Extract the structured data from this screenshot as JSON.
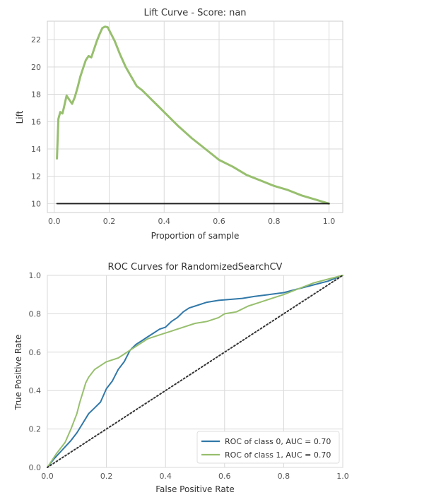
{
  "chart_data": [
    {
      "type": "line",
      "title": "Lift Curve - Score: nan",
      "xlabel": "Proportion of sample",
      "ylabel": "Lift",
      "xlim": [
        -0.025,
        1.05
      ],
      "ylim": [
        9.35,
        23.35
      ],
      "xticks": [
        "0.0",
        "0.2",
        "0.4",
        "0.6",
        "0.8",
        "1.0"
      ],
      "xtick_values": [
        0,
        0.2,
        0.4,
        0.6,
        0.8,
        1.0
      ],
      "yticks": [
        "10",
        "12",
        "14",
        "16",
        "18",
        "20",
        "22"
      ],
      "ytick_values": [
        10,
        12,
        14,
        16,
        18,
        20,
        22
      ],
      "grid": true,
      "series": [
        {
          "color": "#97bf6e",
          "x": [
            0.01,
            0.015,
            0.022,
            0.03,
            0.035,
            0.045,
            0.055,
            0.065,
            0.075,
            0.085,
            0.095,
            0.105,
            0.115,
            0.125,
            0.135,
            0.145,
            0.155,
            0.165,
            0.175,
            0.185,
            0.195,
            0.205,
            0.22,
            0.24,
            0.26,
            0.28,
            0.3,
            0.32,
            0.35,
            0.38,
            0.41,
            0.45,
            0.5,
            0.55,
            0.6,
            0.65,
            0.7,
            0.75,
            0.8,
            0.85,
            0.9,
            0.95,
            1.0
          ],
          "y": [
            13.3,
            16.2,
            16.7,
            16.6,
            17.0,
            17.9,
            17.6,
            17.3,
            17.8,
            18.5,
            19.3,
            19.9,
            20.5,
            20.8,
            20.7,
            21.3,
            21.9,
            22.4,
            22.85,
            22.95,
            22.9,
            22.5,
            21.9,
            20.9,
            20.0,
            19.3,
            18.6,
            18.3,
            17.7,
            17.1,
            16.5,
            15.7,
            14.8,
            14.0,
            13.2,
            12.7,
            12.1,
            11.7,
            11.3,
            11.0,
            10.6,
            10.3,
            10.0
          ]
        },
        {
          "color": "#222222",
          "x": [
            0.01,
            1.0
          ],
          "y": [
            10.0,
            10.0
          ]
        }
      ]
    },
    {
      "type": "line",
      "title": "ROC Curves for RandomizedSearchCV",
      "xlabel": "False Positive Rate",
      "ylabel": "True Positive Rate",
      "xlim": [
        0.0,
        1.0
      ],
      "ylim": [
        0.0,
        1.0
      ],
      "xticks": [
        "0.0",
        "0.2",
        "0.4",
        "0.6",
        "0.8",
        "1.0"
      ],
      "xtick_values": [
        0,
        0.2,
        0.4,
        0.6,
        0.8,
        1.0
      ],
      "yticks": [
        "0.0",
        "0.2",
        "0.4",
        "0.6",
        "0.8",
        "1.0"
      ],
      "ytick_values": [
        0,
        0.2,
        0.4,
        0.6,
        0.8,
        1.0
      ],
      "grid": true,
      "legend_position": "lower-right",
      "series": [
        {
          "name": "ROC of class 0, AUC = 0.70",
          "color": "#3178a8",
          "x": [
            0.0,
            0.02,
            0.05,
            0.08,
            0.1,
            0.12,
            0.14,
            0.16,
            0.18,
            0.2,
            0.22,
            0.24,
            0.26,
            0.28,
            0.3,
            0.32,
            0.34,
            0.36,
            0.38,
            0.4,
            0.42,
            0.44,
            0.46,
            0.48,
            0.5,
            0.54,
            0.58,
            0.62,
            0.66,
            0.7,
            0.75,
            0.8,
            0.85,
            0.9,
            0.95,
            1.0
          ],
          "y": [
            0.0,
            0.04,
            0.09,
            0.14,
            0.18,
            0.23,
            0.28,
            0.31,
            0.34,
            0.41,
            0.45,
            0.51,
            0.55,
            0.61,
            0.64,
            0.66,
            0.68,
            0.7,
            0.72,
            0.73,
            0.76,
            0.78,
            0.81,
            0.83,
            0.84,
            0.86,
            0.87,
            0.875,
            0.88,
            0.89,
            0.9,
            0.91,
            0.93,
            0.95,
            0.97,
            1.0
          ]
        },
        {
          "name": "ROC of class 1, AUC = 0.70",
          "color": "#97bf6e",
          "x": [
            0.0,
            0.03,
            0.06,
            0.08,
            0.1,
            0.11,
            0.12,
            0.13,
            0.14,
            0.16,
            0.18,
            0.2,
            0.22,
            0.24,
            0.26,
            0.3,
            0.34,
            0.38,
            0.42,
            0.46,
            0.5,
            0.54,
            0.58,
            0.6,
            0.64,
            0.68,
            0.72,
            0.76,
            0.8,
            0.85,
            0.9,
            0.95,
            1.0
          ],
          "y": [
            0.0,
            0.07,
            0.13,
            0.2,
            0.28,
            0.34,
            0.39,
            0.44,
            0.47,
            0.51,
            0.53,
            0.55,
            0.56,
            0.57,
            0.59,
            0.63,
            0.67,
            0.69,
            0.71,
            0.73,
            0.75,
            0.76,
            0.78,
            0.8,
            0.81,
            0.84,
            0.86,
            0.88,
            0.9,
            0.93,
            0.96,
            0.98,
            1.0
          ]
        },
        {
          "color": "#333333",
          "dashed": true,
          "x": [
            0.0,
            1.0
          ],
          "y": [
            0.0,
            1.0
          ]
        }
      ]
    }
  ]
}
